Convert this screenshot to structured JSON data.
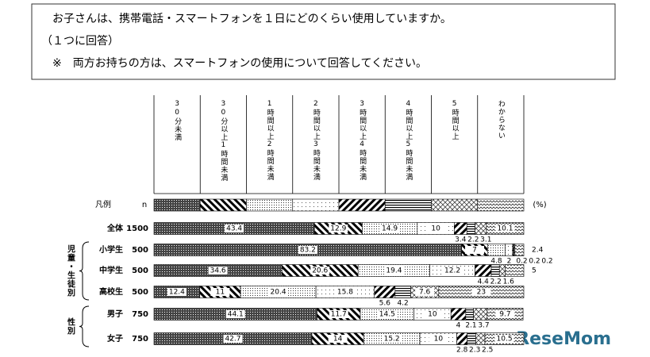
{
  "header": {
    "lines": [
      "お子さんは、携帯電話・スマートフォンを１日にどのくらい使用していますか。",
      "（１つに回答）",
      "※　両方お持ちの方は、スマートフォンの使用について回答してください。"
    ]
  },
  "chart_data": {
    "type": "stacked_bar_horizontal",
    "legend_label": "凡例",
    "n_label": "n",
    "unit_label": "(%)",
    "categories": [
      "全体",
      "小学生",
      "中学生",
      "高校生",
      "男子",
      "女子"
    ],
    "n": [
      1500,
      500,
      500,
      500,
      750,
      750
    ],
    "groups": [
      {
        "label": "児童・生徒別"
      },
      {
        "label": "性別"
      }
    ],
    "xlim": [
      0,
      100
    ],
    "series": [
      {
        "name": "30分未満",
        "values": [
          43.4,
          83.2,
          34.6,
          12.4,
          44.1,
          42.7
        ]
      },
      {
        "name": "30分以上1時間未満",
        "values": [
          12.9,
          7.0,
          20.6,
          11.0,
          11.7,
          14.0
        ]
      },
      {
        "name": "1時間以上2時間未満",
        "values": [
          14.9,
          4.8,
          19.4,
          20.4,
          14.5,
          15.2
        ]
      },
      {
        "name": "2時間以上3時間未満",
        "values": [
          10.0,
          2.0,
          12.2,
          15.8,
          10.0,
          10.0
        ]
      },
      {
        "name": "3時間以上4時間未満",
        "values": [
          3.4,
          0.2,
          4.4,
          5.6,
          4.0,
          2.8
        ]
      },
      {
        "name": "4時間以上5時間未満",
        "values": [
          2.2,
          0.2,
          2.2,
          4.2,
          2.1,
          2.3
        ]
      },
      {
        "name": "5時間以上",
        "values": [
          3.1,
          0.2,
          1.6,
          7.6,
          3.7,
          2.5
        ]
      },
      {
        "name": "わからない",
        "values": [
          10.1,
          2.4,
          5.0,
          23.0,
          9.7,
          10.5
        ]
      }
    ]
  },
  "watermark": "ReseMom"
}
